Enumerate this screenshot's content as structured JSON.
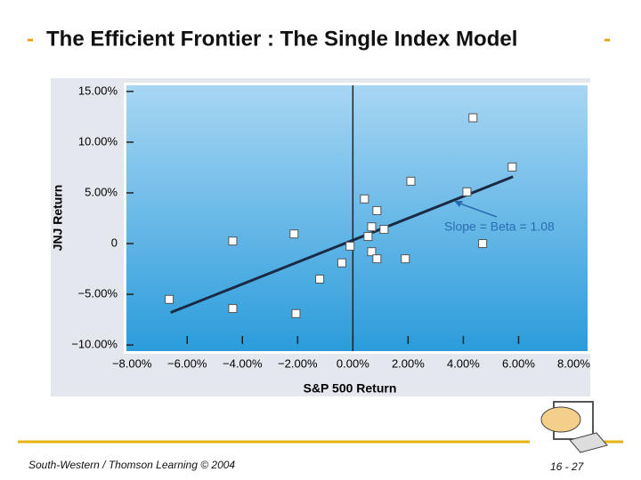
{
  "slide": {
    "title": "The Efficient Frontier : The Single Index Model",
    "footer": "South-Western / Thomson Learning © 2004",
    "page": "16 - 27"
  },
  "chart_data": {
    "type": "scatter",
    "xlabel": "S&P 500 Return",
    "ylabel": "JNJ Return",
    "x": [
      -6.65,
      -4.35,
      -4.35,
      -2.13,
      -2.06,
      -1.2,
      -0.4,
      -0.1,
      0.42,
      0.55,
      0.68,
      0.68,
      0.87,
      0.87,
      1.13,
      1.9,
      2.1,
      4.13,
      4.35,
      4.7,
      5.77
    ],
    "values": [
      -5.5,
      0.25,
      -6.4,
      0.95,
      -6.9,
      -3.5,
      -1.9,
      -0.25,
      4.4,
      0.7,
      1.65,
      -0.8,
      3.25,
      -1.5,
      1.4,
      -1.5,
      6.15,
      5.1,
      12.4,
      0.0,
      7.55
    ],
    "fit_line": {
      "x": [
        -6.6,
        5.8
      ],
      "y": [
        -6.8,
        6.6
      ]
    },
    "annotation": "Slope = Beta = 1.08",
    "xlim": [
      -8.2,
      8.5
    ],
    "ylim": [
      -10.6,
      15.6
    ],
    "xticks": [
      {
        "value": -8,
        "label": "−8.00%"
      },
      {
        "value": -6,
        "label": "−6.00%"
      },
      {
        "value": -4,
        "label": "−4.00%"
      },
      {
        "value": -2,
        "label": "−2.00%"
      },
      {
        "value": 0,
        "label": "0.00%"
      },
      {
        "value": 2,
        "label": "2.00%"
      },
      {
        "value": 4,
        "label": "4.00%"
      },
      {
        "value": 6,
        "label": "6.00%"
      },
      {
        "value": 8,
        "label": "8.00%"
      }
    ],
    "yticks": [
      {
        "value": -10,
        "label": "−10.00%"
      },
      {
        "value": -5,
        "label": "−5.00%"
      },
      0,
      {
        "value": 5,
        "label": "5.00%"
      },
      {
        "value": 10,
        "label": "10.00%"
      },
      {
        "value": 15,
        "label": "15.00%"
      }
    ]
  }
}
